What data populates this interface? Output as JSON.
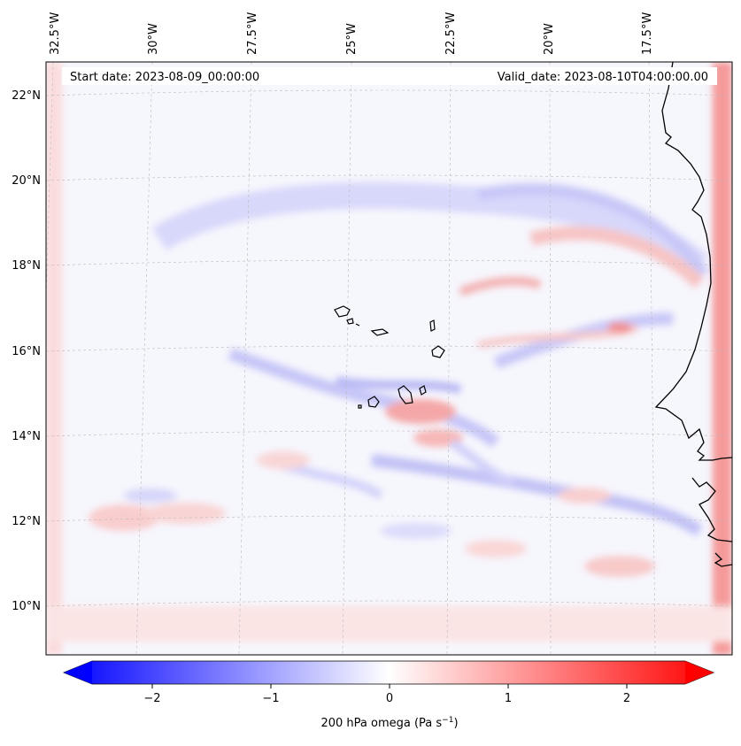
{
  "map": {
    "start_date": "Start date: 2023-08-09_00:00:00",
    "valid_date": "Valid_date: 2023-08-10T04:00:00.00",
    "lon_labels": [
      "32.5°W",
      "30°W",
      "27.5°W",
      "25°W",
      "22.5°W",
      "20°W",
      "17.5°W"
    ],
    "lat_labels": [
      "22°N",
      "20°N",
      "18°N",
      "16°N",
      "14°N",
      "12°N",
      "10°N"
    ],
    "field_range": [
      -2.7,
      2.7
    ]
  },
  "colorbar": {
    "ticks": [
      "−2",
      "−1",
      "0",
      "1",
      "2"
    ],
    "tick_values": [
      -2,
      -1,
      0,
      1,
      2
    ],
    "label": "200 hPa omega (Pa s",
    "label_sup": "−1",
    "label_close": ")",
    "min_color": "#0000ff",
    "mid_color": "#ffffff",
    "max_color": "#ff0000"
  }
}
